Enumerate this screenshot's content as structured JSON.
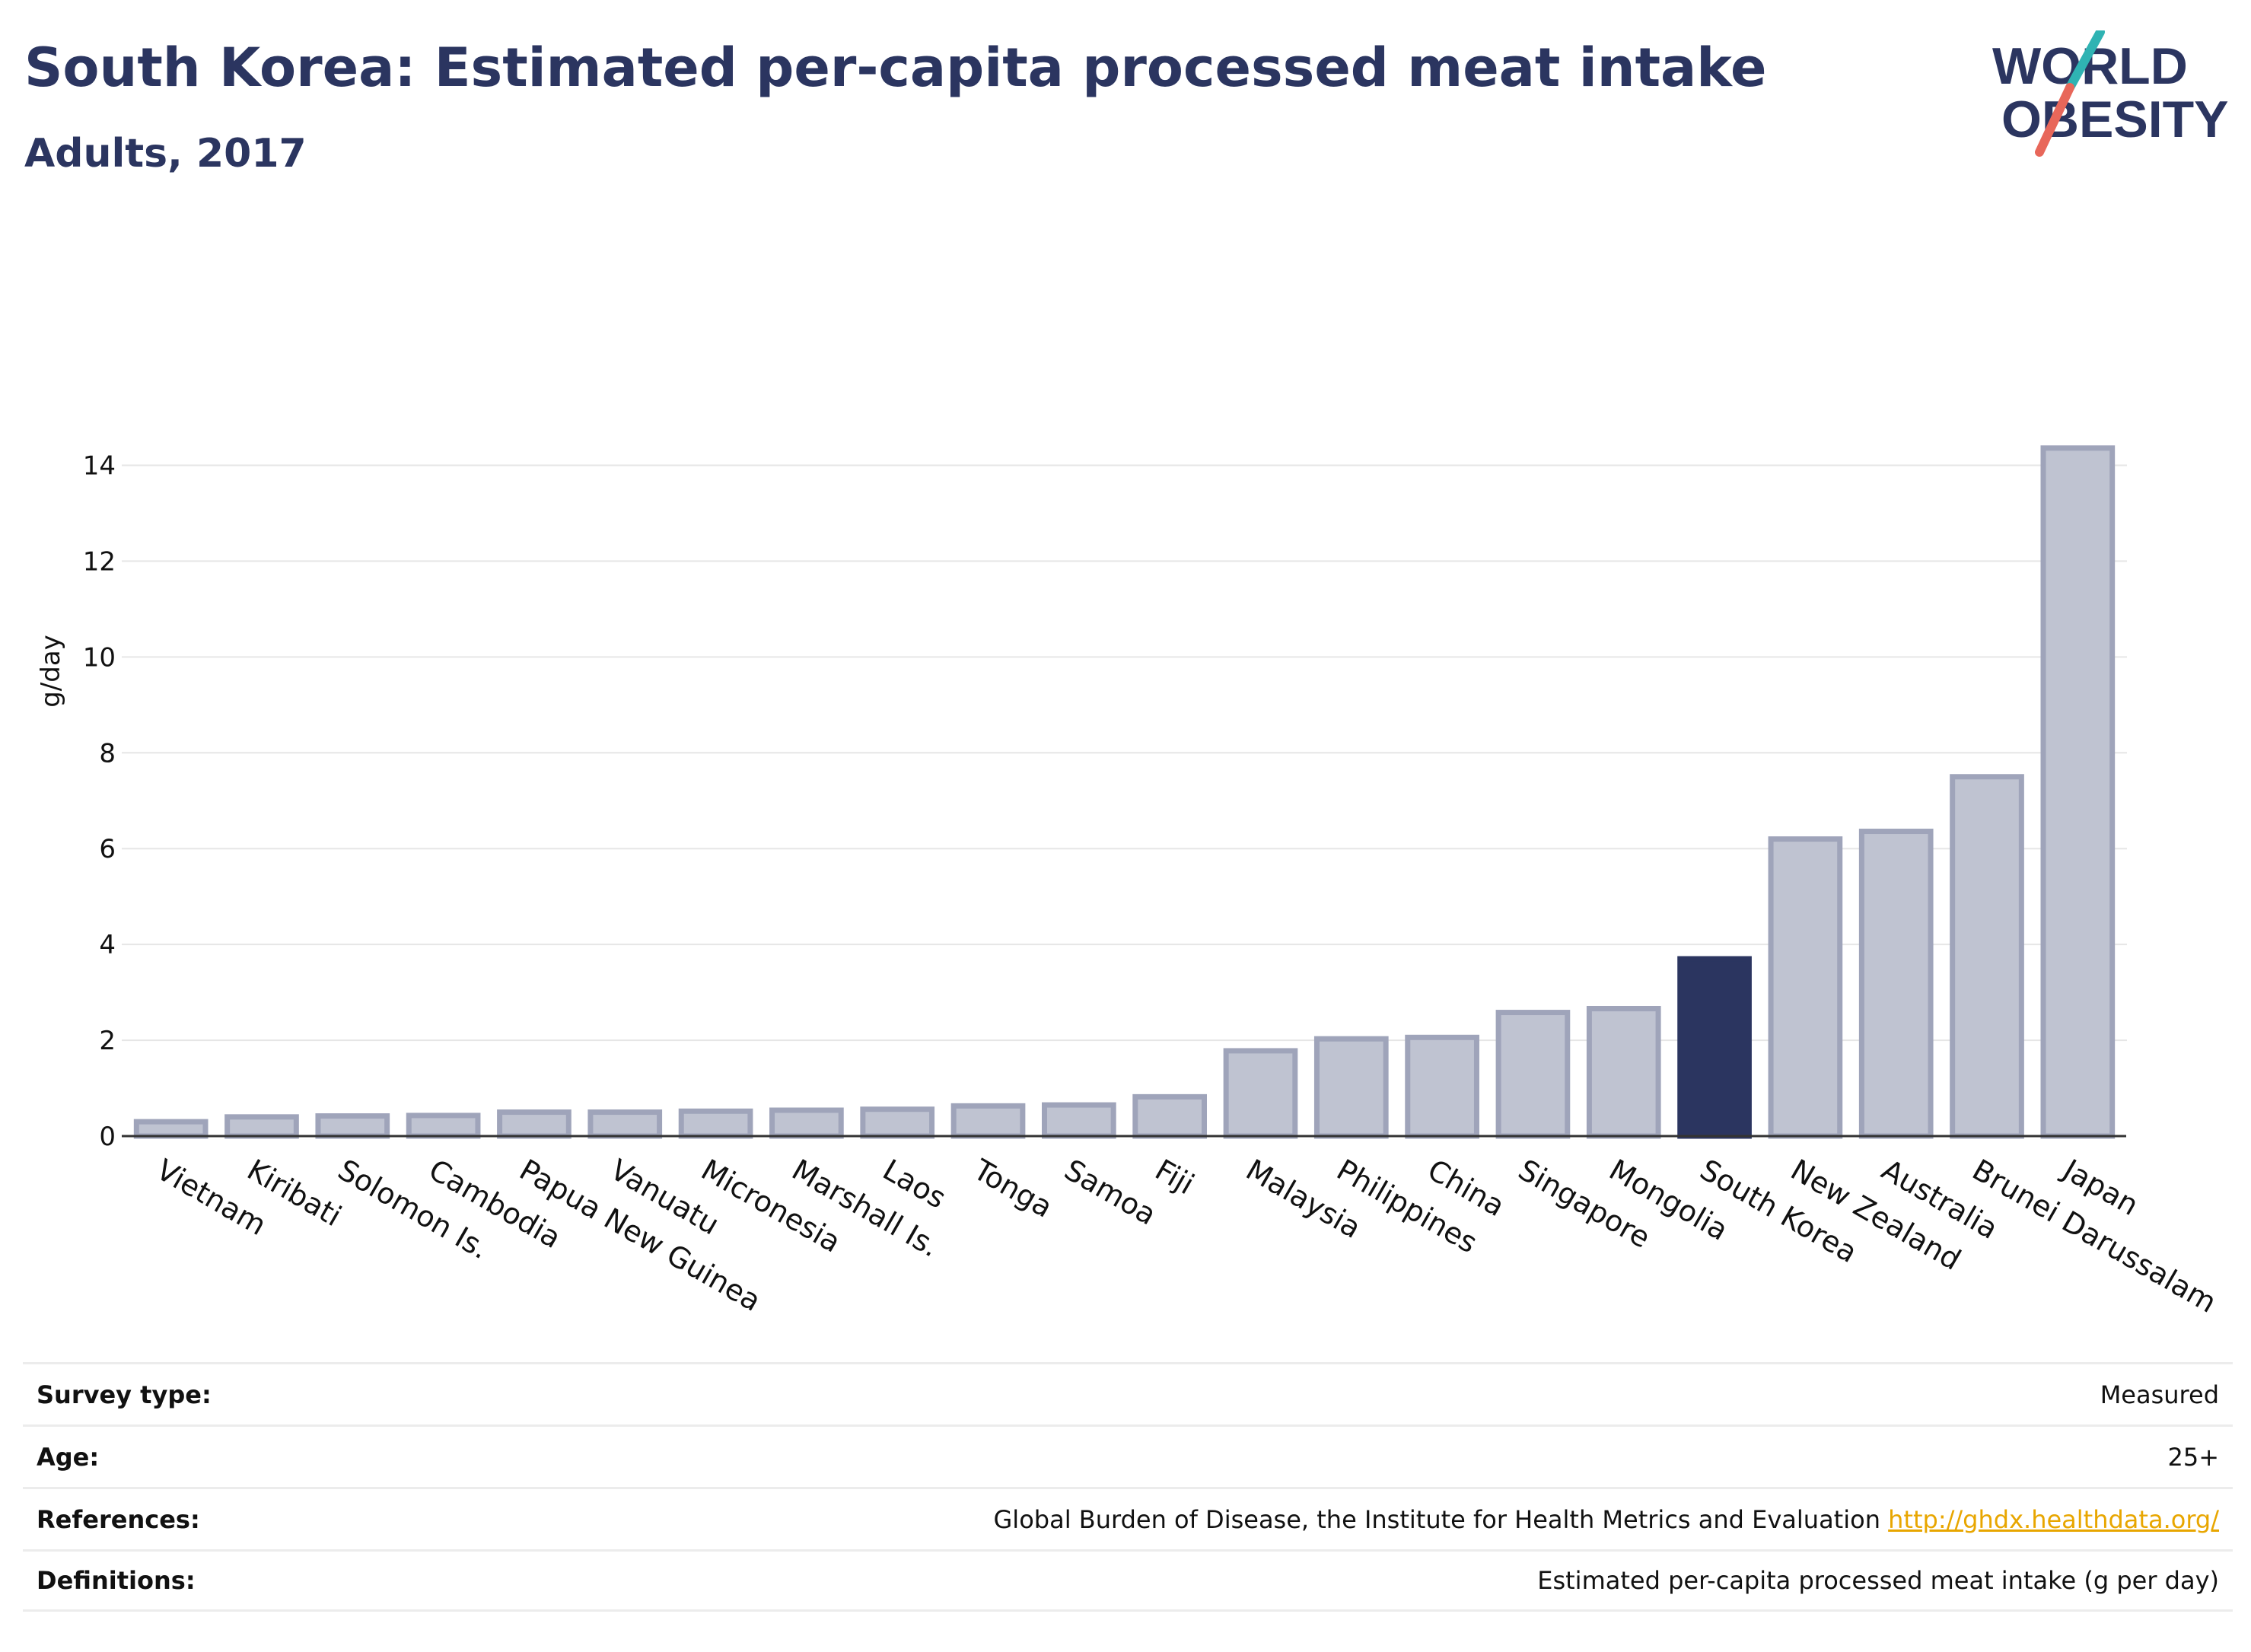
{
  "header": {
    "title": "South Korea: Estimated per-capita processed meat intake",
    "subtitle": "Adults, 2017"
  },
  "logo": {
    "line1": "WORLD",
    "line2": "OBESITY"
  },
  "colors": {
    "bar": "#bfc3d1",
    "bar_border": "#9fa4ba",
    "highlight": "#2b3560",
    "grid": "#e6e6e6"
  },
  "chart_data": {
    "type": "bar",
    "ylabel": "g/day",
    "ylim": [
      0,
      14.5
    ],
    "yticks": [
      0,
      2,
      4,
      6,
      8,
      10,
      12,
      14
    ],
    "highlight": "South Korea",
    "categories": [
      "Vietnam",
      "Kiribati",
      "Solomon Is.",
      "Cambodia",
      "Papua New Guinea",
      "Vanuatu",
      "Micronesia",
      "Marshall Is.",
      "Laos",
      "Tonga",
      "Samoa",
      "Fiji",
      "Malaysia",
      "Philippines",
      "China",
      "Singapore",
      "Mongolia",
      "South Korea",
      "New Zealand",
      "Australia",
      "Brunei Darussalam",
      "Japan"
    ],
    "values": [
      0.3,
      0.4,
      0.42,
      0.43,
      0.5,
      0.5,
      0.52,
      0.54,
      0.56,
      0.63,
      0.65,
      0.82,
      1.78,
      2.03,
      2.06,
      2.58,
      2.66,
      3.7,
      6.2,
      6.36,
      7.5,
      14.36
    ]
  },
  "info_table": [
    {
      "label": "Survey type:",
      "value": "Measured"
    },
    {
      "label": "Age:",
      "value": "25+"
    },
    {
      "label": "References:",
      "value": "Global Burden of Disease, the Institute for Health Metrics and Evaluation",
      "link": "http://ghdx.healthdata.org/"
    },
    {
      "label": "Definitions:",
      "value": "Estimated per-capita processed meat intake (g per day)"
    }
  ]
}
